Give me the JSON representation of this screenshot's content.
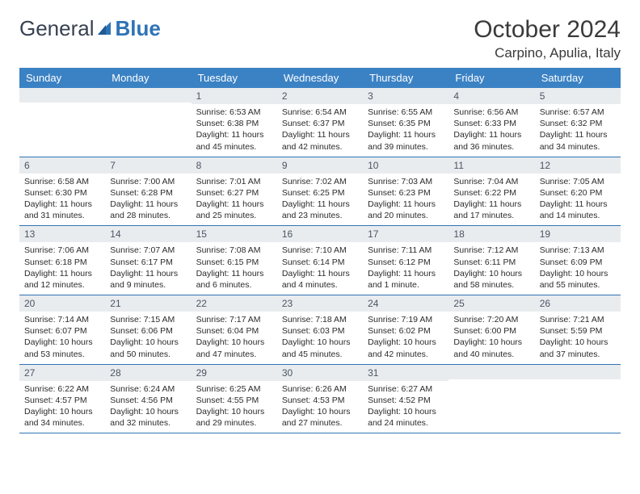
{
  "logo": {
    "part1": "General",
    "part2": "Blue"
  },
  "title": "October 2024",
  "location": "Carpino, Apulia, Italy",
  "day_headers": [
    "Sunday",
    "Monday",
    "Tuesday",
    "Wednesday",
    "Thursday",
    "Friday",
    "Saturday"
  ],
  "colors": {
    "header_bg": "#3b82c4",
    "header_text": "#ffffff",
    "daynum_bg": "#e9ecef",
    "border": "#2f73b5"
  },
  "weeks": [
    [
      {
        "n": "",
        "sunrise": "",
        "sunset": "",
        "daylight": ""
      },
      {
        "n": "",
        "sunrise": "",
        "sunset": "",
        "daylight": ""
      },
      {
        "n": "1",
        "sunrise": "Sunrise: 6:53 AM",
        "sunset": "Sunset: 6:38 PM",
        "daylight": "Daylight: 11 hours and 45 minutes."
      },
      {
        "n": "2",
        "sunrise": "Sunrise: 6:54 AM",
        "sunset": "Sunset: 6:37 PM",
        "daylight": "Daylight: 11 hours and 42 minutes."
      },
      {
        "n": "3",
        "sunrise": "Sunrise: 6:55 AM",
        "sunset": "Sunset: 6:35 PM",
        "daylight": "Daylight: 11 hours and 39 minutes."
      },
      {
        "n": "4",
        "sunrise": "Sunrise: 6:56 AM",
        "sunset": "Sunset: 6:33 PM",
        "daylight": "Daylight: 11 hours and 36 minutes."
      },
      {
        "n": "5",
        "sunrise": "Sunrise: 6:57 AM",
        "sunset": "Sunset: 6:32 PM",
        "daylight": "Daylight: 11 hours and 34 minutes."
      }
    ],
    [
      {
        "n": "6",
        "sunrise": "Sunrise: 6:58 AM",
        "sunset": "Sunset: 6:30 PM",
        "daylight": "Daylight: 11 hours and 31 minutes."
      },
      {
        "n": "7",
        "sunrise": "Sunrise: 7:00 AM",
        "sunset": "Sunset: 6:28 PM",
        "daylight": "Daylight: 11 hours and 28 minutes."
      },
      {
        "n": "8",
        "sunrise": "Sunrise: 7:01 AM",
        "sunset": "Sunset: 6:27 PM",
        "daylight": "Daylight: 11 hours and 25 minutes."
      },
      {
        "n": "9",
        "sunrise": "Sunrise: 7:02 AM",
        "sunset": "Sunset: 6:25 PM",
        "daylight": "Daylight: 11 hours and 23 minutes."
      },
      {
        "n": "10",
        "sunrise": "Sunrise: 7:03 AM",
        "sunset": "Sunset: 6:23 PM",
        "daylight": "Daylight: 11 hours and 20 minutes."
      },
      {
        "n": "11",
        "sunrise": "Sunrise: 7:04 AM",
        "sunset": "Sunset: 6:22 PM",
        "daylight": "Daylight: 11 hours and 17 minutes."
      },
      {
        "n": "12",
        "sunrise": "Sunrise: 7:05 AM",
        "sunset": "Sunset: 6:20 PM",
        "daylight": "Daylight: 11 hours and 14 minutes."
      }
    ],
    [
      {
        "n": "13",
        "sunrise": "Sunrise: 7:06 AM",
        "sunset": "Sunset: 6:18 PM",
        "daylight": "Daylight: 11 hours and 12 minutes."
      },
      {
        "n": "14",
        "sunrise": "Sunrise: 7:07 AM",
        "sunset": "Sunset: 6:17 PM",
        "daylight": "Daylight: 11 hours and 9 minutes."
      },
      {
        "n": "15",
        "sunrise": "Sunrise: 7:08 AM",
        "sunset": "Sunset: 6:15 PM",
        "daylight": "Daylight: 11 hours and 6 minutes."
      },
      {
        "n": "16",
        "sunrise": "Sunrise: 7:10 AM",
        "sunset": "Sunset: 6:14 PM",
        "daylight": "Daylight: 11 hours and 4 minutes."
      },
      {
        "n": "17",
        "sunrise": "Sunrise: 7:11 AM",
        "sunset": "Sunset: 6:12 PM",
        "daylight": "Daylight: 11 hours and 1 minute."
      },
      {
        "n": "18",
        "sunrise": "Sunrise: 7:12 AM",
        "sunset": "Sunset: 6:11 PM",
        "daylight": "Daylight: 10 hours and 58 minutes."
      },
      {
        "n": "19",
        "sunrise": "Sunrise: 7:13 AM",
        "sunset": "Sunset: 6:09 PM",
        "daylight": "Daylight: 10 hours and 55 minutes."
      }
    ],
    [
      {
        "n": "20",
        "sunrise": "Sunrise: 7:14 AM",
        "sunset": "Sunset: 6:07 PM",
        "daylight": "Daylight: 10 hours and 53 minutes."
      },
      {
        "n": "21",
        "sunrise": "Sunrise: 7:15 AM",
        "sunset": "Sunset: 6:06 PM",
        "daylight": "Daylight: 10 hours and 50 minutes."
      },
      {
        "n": "22",
        "sunrise": "Sunrise: 7:17 AM",
        "sunset": "Sunset: 6:04 PM",
        "daylight": "Daylight: 10 hours and 47 minutes."
      },
      {
        "n": "23",
        "sunrise": "Sunrise: 7:18 AM",
        "sunset": "Sunset: 6:03 PM",
        "daylight": "Daylight: 10 hours and 45 minutes."
      },
      {
        "n": "24",
        "sunrise": "Sunrise: 7:19 AM",
        "sunset": "Sunset: 6:02 PM",
        "daylight": "Daylight: 10 hours and 42 minutes."
      },
      {
        "n": "25",
        "sunrise": "Sunrise: 7:20 AM",
        "sunset": "Sunset: 6:00 PM",
        "daylight": "Daylight: 10 hours and 40 minutes."
      },
      {
        "n": "26",
        "sunrise": "Sunrise: 7:21 AM",
        "sunset": "Sunset: 5:59 PM",
        "daylight": "Daylight: 10 hours and 37 minutes."
      }
    ],
    [
      {
        "n": "27",
        "sunrise": "Sunrise: 6:22 AM",
        "sunset": "Sunset: 4:57 PM",
        "daylight": "Daylight: 10 hours and 34 minutes."
      },
      {
        "n": "28",
        "sunrise": "Sunrise: 6:24 AM",
        "sunset": "Sunset: 4:56 PM",
        "daylight": "Daylight: 10 hours and 32 minutes."
      },
      {
        "n": "29",
        "sunrise": "Sunrise: 6:25 AM",
        "sunset": "Sunset: 4:55 PM",
        "daylight": "Daylight: 10 hours and 29 minutes."
      },
      {
        "n": "30",
        "sunrise": "Sunrise: 6:26 AM",
        "sunset": "Sunset: 4:53 PM",
        "daylight": "Daylight: 10 hours and 27 minutes."
      },
      {
        "n": "31",
        "sunrise": "Sunrise: 6:27 AM",
        "sunset": "Sunset: 4:52 PM",
        "daylight": "Daylight: 10 hours and 24 minutes."
      },
      {
        "n": "",
        "sunrise": "",
        "sunset": "",
        "daylight": ""
      },
      {
        "n": "",
        "sunrise": "",
        "sunset": "",
        "daylight": ""
      }
    ]
  ]
}
